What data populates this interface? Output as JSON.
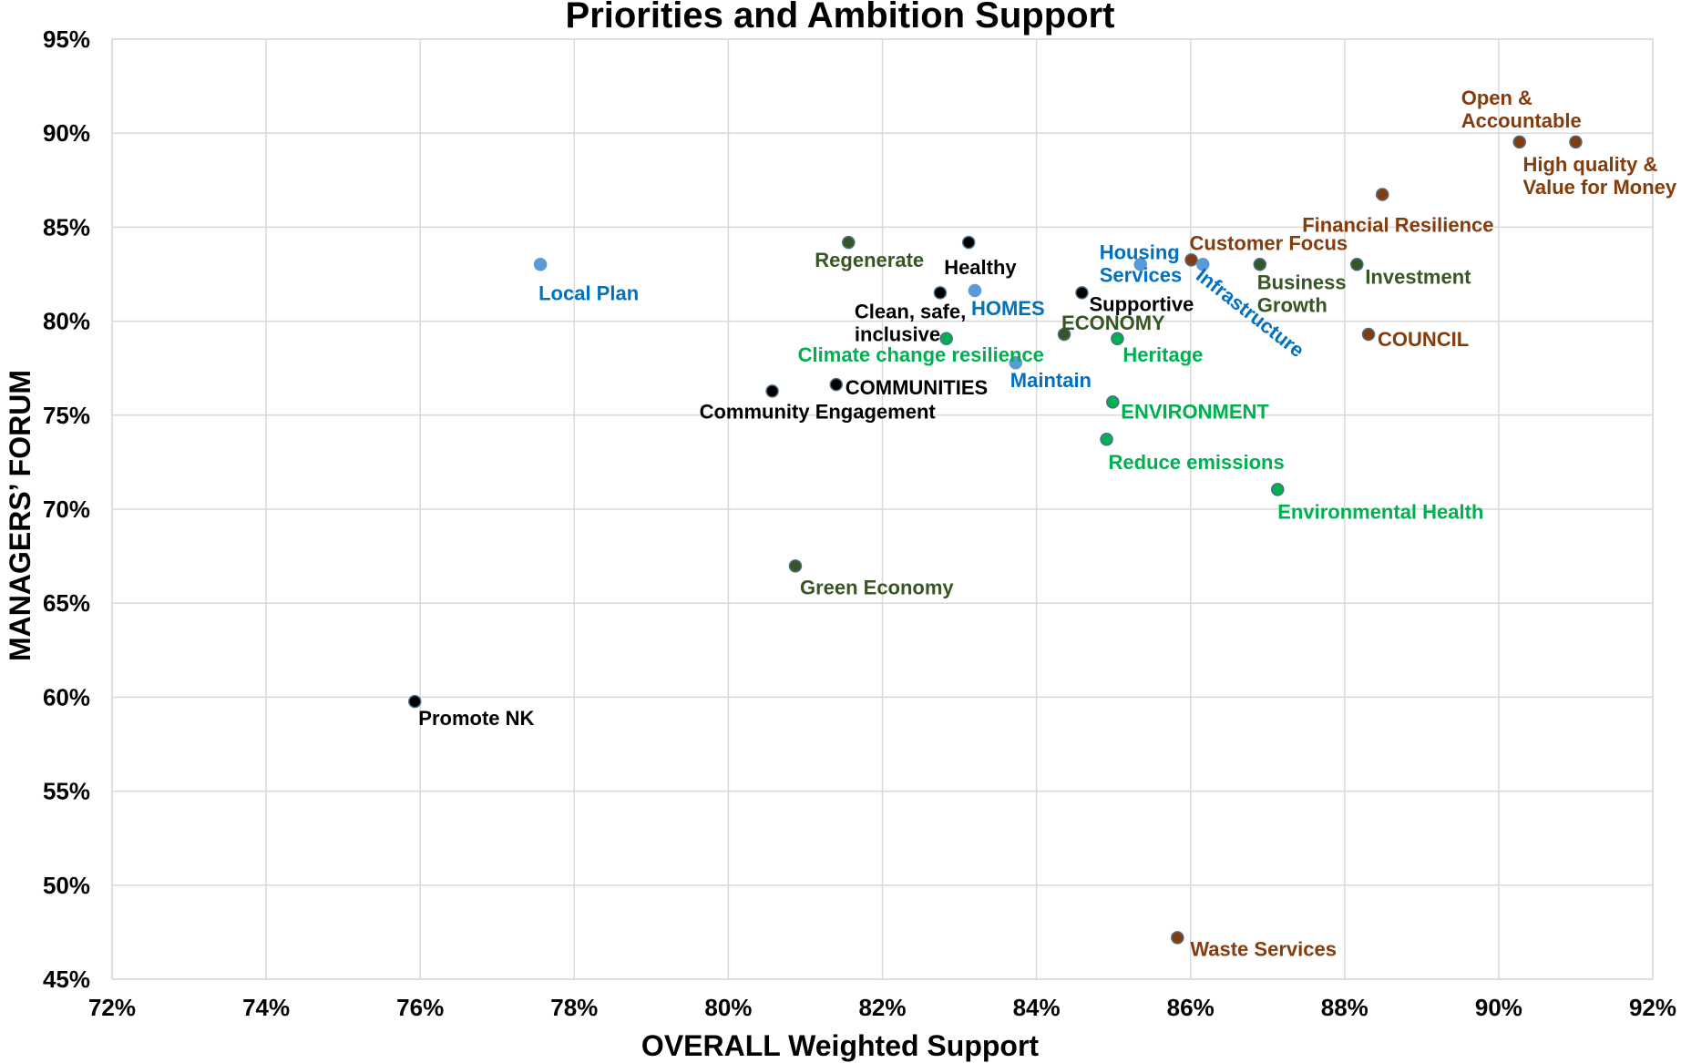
{
  "chart_data": {
    "type": "scatter",
    "title": "Priorities and Ambition Support",
    "xlabel": "OVERALL Weighted Support",
    "ylabel": "MANAGERS’ FORUM",
    "xlim": [
      0.72,
      0.92
    ],
    "ylim": [
      0.45,
      0.95
    ],
    "xticks": [
      "72%",
      "74%",
      "76%",
      "78%",
      "80%",
      "82%",
      "84%",
      "86%",
      "88%",
      "90%",
      "92%"
    ],
    "yticks": [
      "45%",
      "50%",
      "55%",
      "60%",
      "65%",
      "70%",
      "75%",
      "80%",
      "85%",
      "90%",
      "95%"
    ],
    "grid": true,
    "legend": "none",
    "colors": {
      "council": "#843c0c",
      "economy": "#375623",
      "environment": "#00b050",
      "homes": "#0070c0",
      "homes_marker": "#5b9bd5",
      "communities": "#000000"
    },
    "points": [
      {
        "label": "Open &\nAccountable",
        "x": 0.9027,
        "y": 0.8953,
        "group": "council"
      },
      {
        "label": "High quality &\nValue for Money",
        "x": 0.91,
        "y": 0.8953,
        "group": "council"
      },
      {
        "label": "Financial Resilience",
        "x": 0.8849,
        "y": 0.8674,
        "group": "council"
      },
      {
        "label": "Customer Focus",
        "x": 0.8601,
        "y": 0.8326,
        "group": "council"
      },
      {
        "label": "COUNCIL",
        "x": 0.8831,
        "y": 0.793,
        "group": "council"
      },
      {
        "label": "Waste Services",
        "x": 0.8583,
        "y": 0.4721,
        "group": "council"
      },
      {
        "label": "Regenerate",
        "x": 0.8156,
        "y": 0.8419,
        "group": "economy"
      },
      {
        "label": "Business\nGrowth",
        "x": 0.869,
        "y": 0.8302,
        "group": "economy"
      },
      {
        "label": "Investment",
        "x": 0.8816,
        "y": 0.8302,
        "group": "economy"
      },
      {
        "label": "ECONOMY",
        "x": 0.8436,
        "y": 0.793,
        "group": "economy"
      },
      {
        "label": "Green Economy",
        "x": 0.8087,
        "y": 0.6698,
        "group": "economy"
      },
      {
        "label": "Climate change resilience",
        "x": 0.8283,
        "y": 0.7907,
        "group": "environment"
      },
      {
        "label": "Heritage",
        "x": 0.8505,
        "y": 0.7907,
        "group": "environment"
      },
      {
        "label": "ENVIRONMENT",
        "x": 0.8499,
        "y": 0.757,
        "group": "environment"
      },
      {
        "label": "Reduce emissions",
        "x": 0.8491,
        "y": 0.7372,
        "group": "environment"
      },
      {
        "label": "Environmental Health",
        "x": 0.8713,
        "y": 0.7105,
        "group": "environment"
      },
      {
        "label": "Local Plan",
        "x": 0.7756,
        "y": 0.8302,
        "group": "homes"
      },
      {
        "label": "HOMES",
        "x": 0.832,
        "y": 0.8163,
        "group": "homes"
      },
      {
        "label": "Housing\nServices",
        "x": 0.8535,
        "y": 0.8302,
        "group": "homes"
      },
      {
        "label": "Infrastructure",
        "x": 0.8616,
        "y": 0.8302,
        "group": "homes"
      },
      {
        "label": "Maintain",
        "x": 0.8373,
        "y": 0.7779,
        "group": "homes"
      },
      {
        "label": "Healthy",
        "x": 0.8312,
        "y": 0.8419,
        "group": "communities"
      },
      {
        "label": "Clean, safe,\ninclusive",
        "x": 0.8275,
        "y": 0.8151,
        "group": "communities"
      },
      {
        "label": "Supportive",
        "x": 0.8459,
        "y": 0.8151,
        "group": "communities"
      },
      {
        "label": "COMMUNITIES",
        "x": 0.814,
        "y": 0.7663,
        "group": "communities"
      },
      {
        "label": "Community Engagement",
        "x": 0.8057,
        "y": 0.7628,
        "group": "communities"
      },
      {
        "label": "Promote NK",
        "x": 0.7593,
        "y": 0.5977,
        "group": "communities"
      }
    ]
  }
}
